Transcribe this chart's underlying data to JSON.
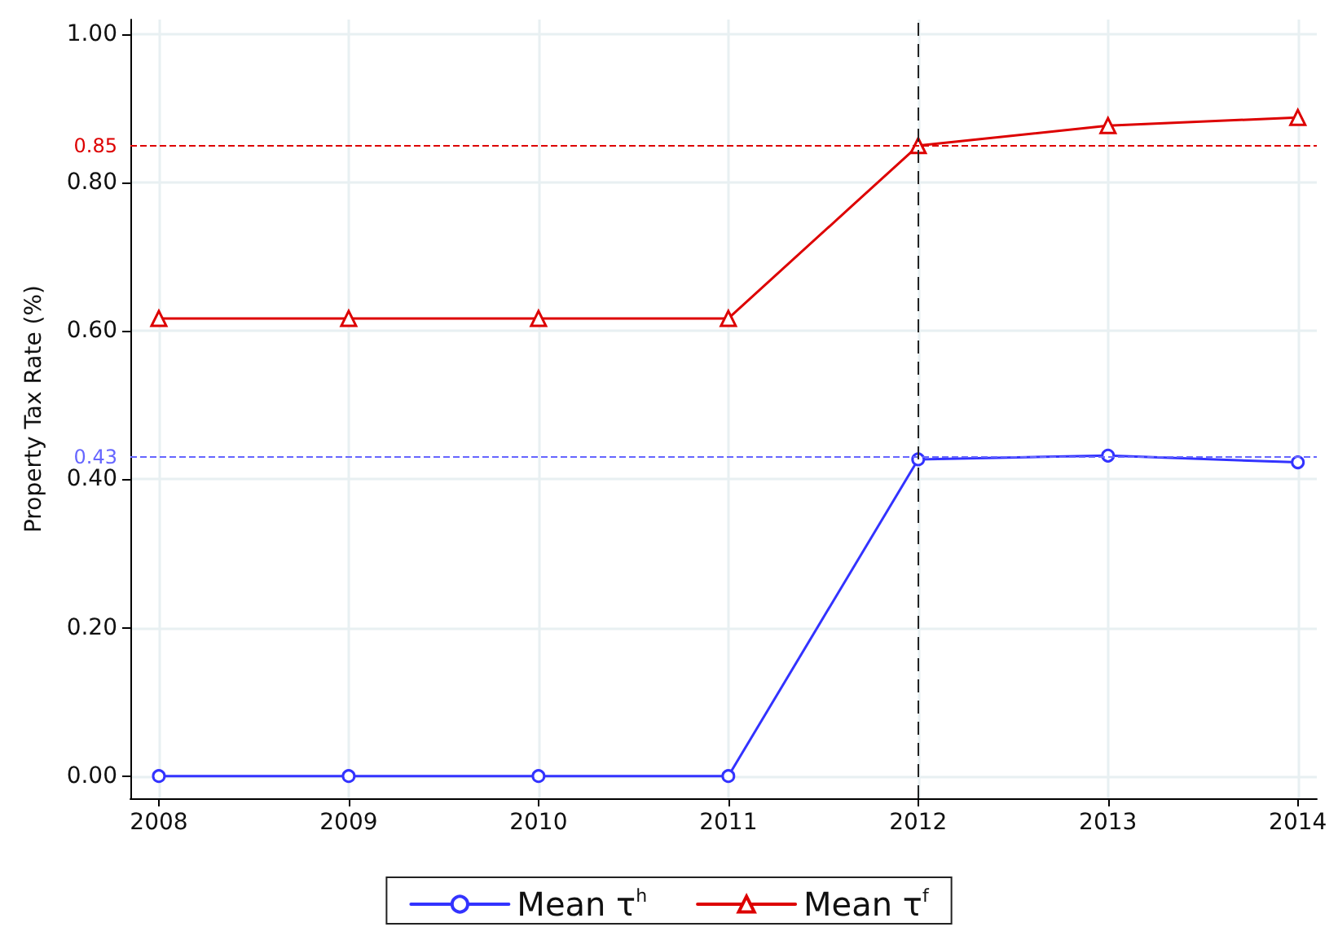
{
  "chart_data": {
    "type": "line",
    "ylabel": "Property Tax Rate (%)",
    "x": [
      2008,
      2009,
      2010,
      2011,
      2012,
      2013,
      2014
    ],
    "xlim": [
      2007.85,
      2014.1
    ],
    "xticks": [
      2008,
      2009,
      2010,
      2011,
      2012,
      2013,
      2014
    ],
    "ylim": [
      -0.03,
      1.02
    ],
    "yticks": [
      {
        "value": 0,
        "label": "0.00"
      },
      {
        "value": 0.2,
        "label": "0.20"
      },
      {
        "value": 0.4,
        "label": "0.40"
      },
      {
        "value": 0.6,
        "label": "0.60"
      },
      {
        "value": 0.8,
        "label": "0.80"
      },
      {
        "value": 1,
        "label": "1.00"
      }
    ],
    "series": [
      {
        "name": "Mean τ$^{h}$",
        "color": "#3333ff",
        "marker": "circle",
        "values": [
          0,
          0,
          0,
          0,
          0.427,
          0.432,
          0.423
        ]
      },
      {
        "name": "Mean τ$^{f}$",
        "color": "#dd0000",
        "marker": "triangle",
        "values": [
          0.617,
          0.617,
          0.617,
          0.617,
          0.85,
          0.877,
          0.888
        ]
      }
    ],
    "ref_lines": [
      {
        "axis": "y",
        "value": 0.85,
        "label": "0.85",
        "color": "#dd0000",
        "line_style": "dashed"
      },
      {
        "axis": "y",
        "value": 0.43,
        "label": "0.43",
        "color": "#6666ff",
        "line_style": "dashed"
      },
      {
        "axis": "x",
        "value": 2012,
        "color": "#222222",
        "line_style": "dashed"
      }
    ],
    "grid": true,
    "legend": "bottom",
    "line_style": "solid"
  }
}
